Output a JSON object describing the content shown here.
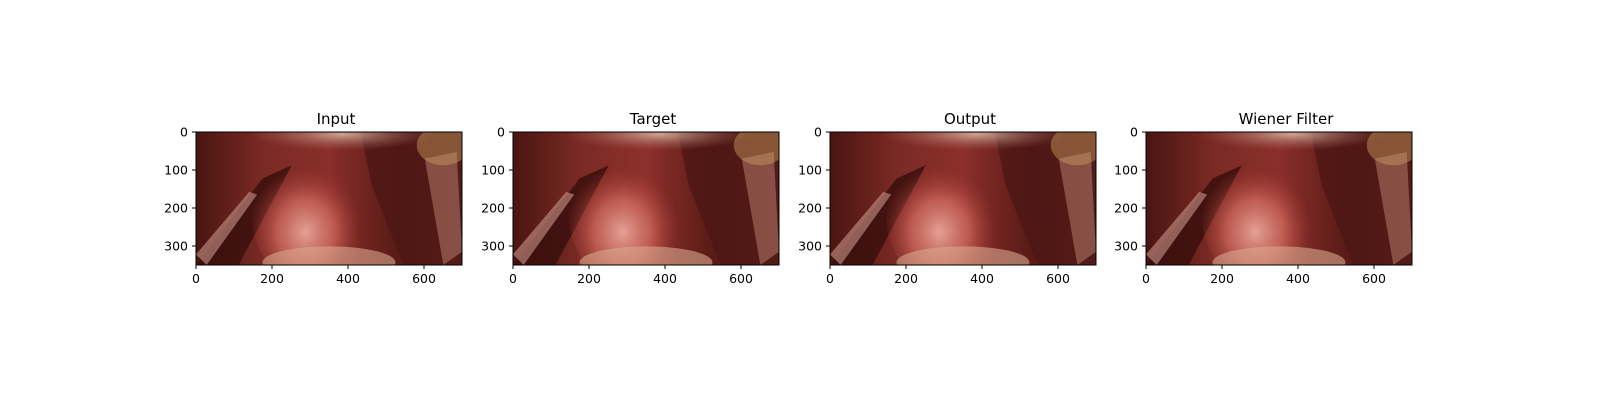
{
  "figure": {
    "panels": [
      {
        "title": "Input",
        "xticks": [
          "0",
          "200",
          "400",
          "600"
        ],
        "yticks": [
          "0",
          "100",
          "200",
          "300"
        ],
        "image": "surgical-endoscopy-frame",
        "shade": "#8a2e2a"
      },
      {
        "title": "Target",
        "xticks": [
          "0",
          "200",
          "400",
          "600"
        ],
        "yticks": [
          "0",
          "100",
          "200",
          "300"
        ],
        "image": "surgical-endoscopy-frame",
        "shade": "#8e302b"
      },
      {
        "title": "Output",
        "xticks": [
          "0",
          "200",
          "400",
          "600"
        ],
        "yticks": [
          "0",
          "100",
          "200",
          "300"
        ],
        "image": "surgical-endoscopy-frame",
        "shade": "#8c2f2b"
      },
      {
        "title": "Wiener Filter",
        "xticks": [
          "0",
          "200",
          "400",
          "600"
        ],
        "yticks": [
          "0",
          "100",
          "200",
          "300"
        ],
        "image": "surgical-endoscopy-frame",
        "shade": "#8b2f2b"
      }
    ],
    "axis_ranges": {
      "x": [
        0,
        700
      ],
      "y": [
        350,
        0
      ]
    }
  }
}
